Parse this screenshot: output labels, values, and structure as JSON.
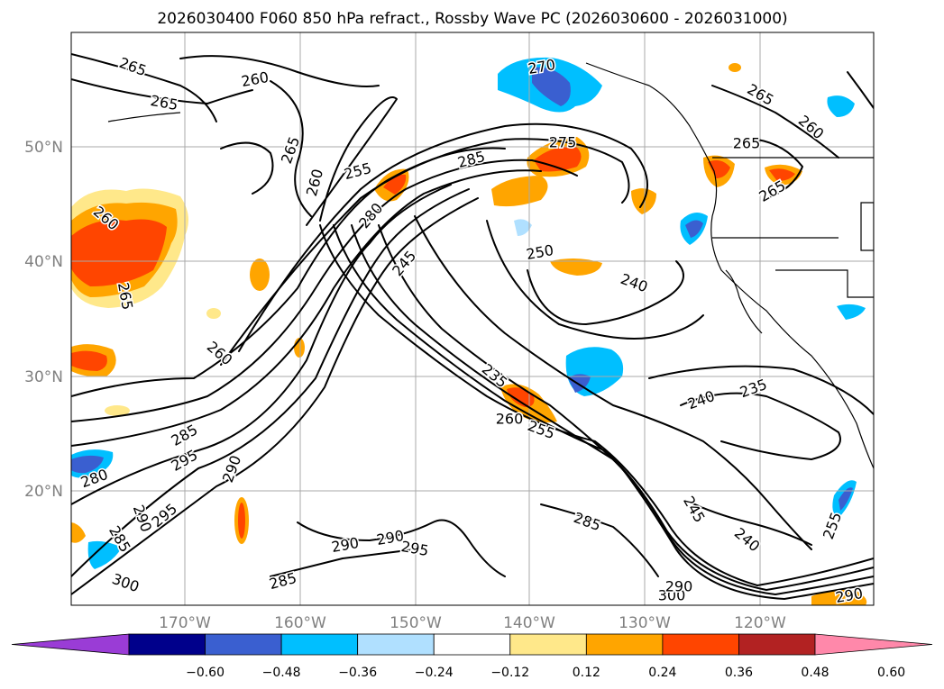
{
  "title": "2026030400 F060 850 hPa refract., Rossby Wave PC (2026030600 - 2026031000)",
  "lon_labels": [
    "170°W",
    "160°W",
    "150°W",
    "140°W",
    "130°W",
    "120°W"
  ],
  "lat_labels": [
    "50°N",
    "40°N",
    "30°N",
    "20°N"
  ],
  "colorbar": {
    "tick_labels": [
      "−0.60",
      "−0.48",
      "−0.36",
      "−0.24",
      "−0.12",
      "0.12",
      "0.24",
      "0.36",
      "0.48",
      "0.60"
    ],
    "colors": [
      "#9a3cd6",
      "#00008b",
      "#3a5fd0",
      "#00bfff",
      "#b0e0ff",
      "#ffffff",
      "#ffe88a",
      "#ffa500",
      "#ff4500",
      "#b22222",
      "#ff88aa"
    ]
  },
  "contour_labels": [
    "265",
    "260",
    "265",
    "270",
    "265",
    "260",
    "265",
    "275",
    "285",
    "255",
    "260",
    "280",
    "265",
    "260",
    "245",
    "250",
    "240",
    "265",
    "260",
    "235",
    "260",
    "255",
    "265",
    "235",
    "240",
    "285",
    "295",
    "290",
    "280",
    "290",
    "285",
    "300",
    "295",
    "290",
    "290",
    "295",
    "285",
    "285",
    "245",
    "240",
    "300",
    "290",
    "290",
    "255"
  ],
  "colors": {
    "shade_negative": "#00bfff",
    "shade_negative_strong": "#3a5fd0",
    "shade_positive": "#ffa500",
    "shade_positive_strong": "#ff4500"
  }
}
